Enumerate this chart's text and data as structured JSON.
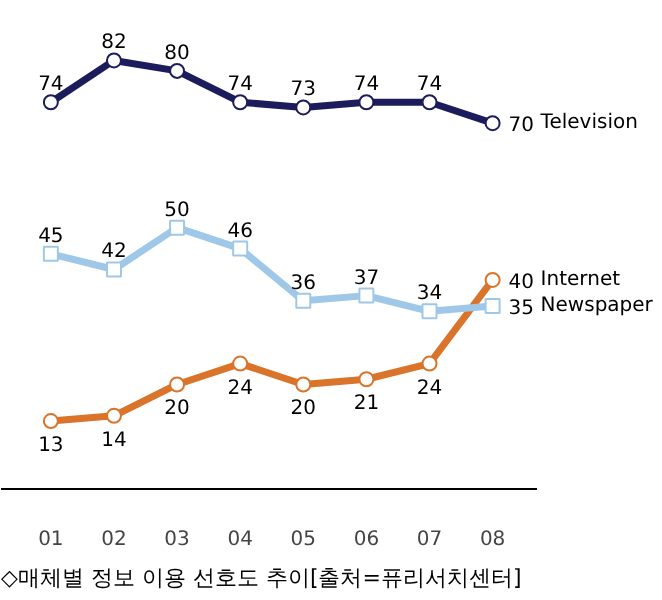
{
  "chart_data": {
    "type": "line",
    "categories": [
      "01",
      "02",
      "03",
      "04",
      "05",
      "06",
      "07",
      "08"
    ],
    "series": [
      {
        "name": "Television",
        "color": "#1c1c5c",
        "marker": "circle",
        "values": [
          74,
          82,
          80,
          74,
          73,
          74,
          74,
          70
        ]
      },
      {
        "name": "Internet",
        "color": "#d9742a",
        "marker": "circle",
        "values": [
          13,
          14,
          20,
          24,
          20,
          21,
          24,
          40
        ]
      },
      {
        "name": "Newspaper",
        "color": "#9fc8e8",
        "marker": "square",
        "values": [
          45,
          42,
          50,
          46,
          36,
          37,
          34,
          35
        ]
      }
    ],
    "data_labels": true,
    "grid": false,
    "line_style": "solid",
    "annotations": [
      "◇매체별 정보 이용 선호도 추이[출처=퓨리서치센터]"
    ]
  }
}
